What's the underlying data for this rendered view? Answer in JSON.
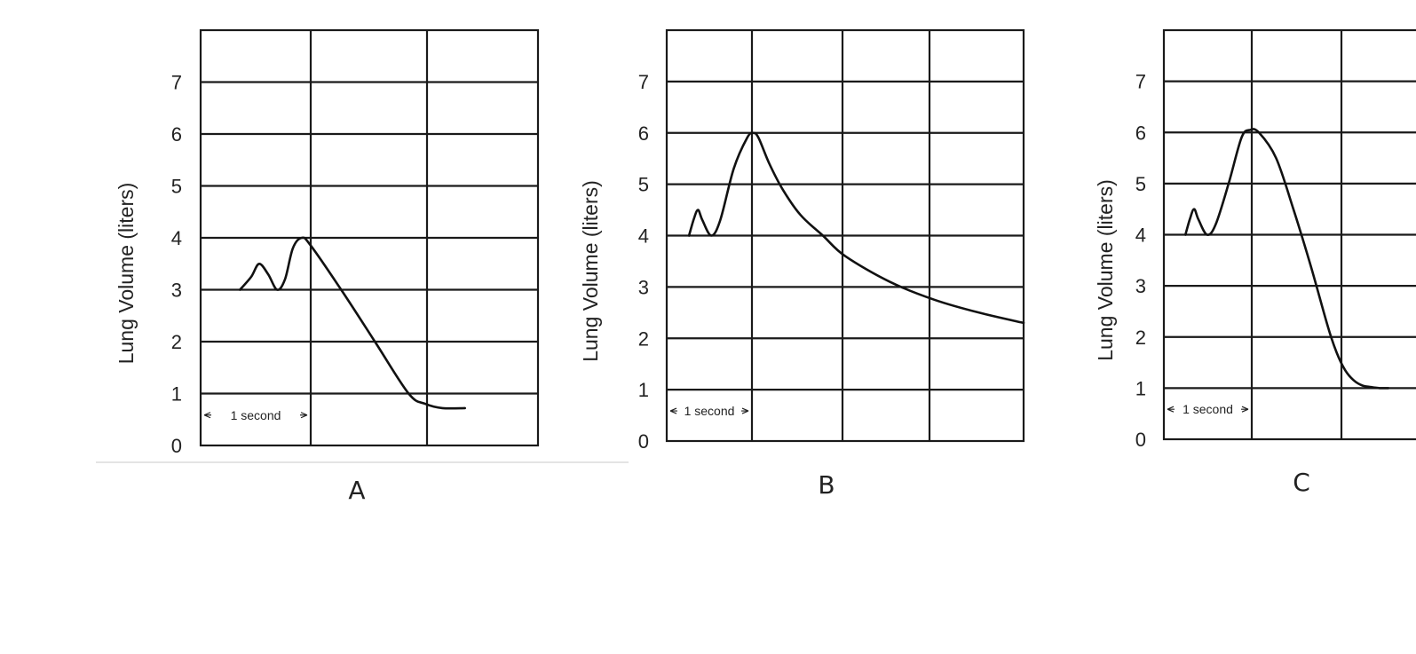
{
  "chart_data": [
    {
      "type": "line",
      "panel": "A",
      "ylabel": "Lung Volume (liters)",
      "ylim": [
        0,
        8
      ],
      "yticks": [
        "0",
        "1",
        "2",
        "3",
        "4",
        "5",
        "6",
        "7"
      ],
      "xlim": [
        0,
        3
      ],
      "x_unit_note": "1 second",
      "grid": true,
      "series": [
        {
          "x": [
            0.35,
            0.45,
            0.52,
            0.6,
            0.68,
            0.75,
            0.82,
            0.9,
            0.98,
            1.25,
            1.55,
            1.85,
            2.0,
            2.15,
            2.35
          ],
          "y": [
            3.0,
            3.25,
            3.5,
            3.3,
            3.0,
            3.2,
            3.8,
            4.0,
            3.85,
            3.0,
            2.0,
            1.0,
            0.8,
            0.72,
            0.72
          ]
        }
      ]
    },
    {
      "type": "line",
      "panel": "B",
      "ylabel": "Lung Volume (liters)",
      "ylim": [
        0,
        8
      ],
      "yticks": [
        "0",
        "1",
        "2",
        "3",
        "4",
        "5",
        "6",
        "7"
      ],
      "xlim": [
        0,
        4
      ],
      "x_unit_note": "1 second",
      "grid": true,
      "series": [
        {
          "x": [
            0.25,
            0.3,
            0.35,
            0.4,
            0.5,
            0.6,
            0.75,
            0.9,
            0.97,
            1.03,
            1.15,
            1.3,
            1.5,
            1.75,
            2.0,
            2.5,
            3.0,
            3.5,
            4.0
          ],
          "y": [
            4.0,
            4.3,
            4.5,
            4.3,
            4.0,
            4.3,
            5.3,
            5.9,
            6.0,
            5.9,
            5.4,
            4.9,
            4.4,
            4.0,
            3.6,
            3.1,
            2.75,
            2.5,
            2.3
          ]
        }
      ]
    },
    {
      "type": "line",
      "panel": "C",
      "ylabel": "Lung Volume (liters)",
      "ylim": [
        0,
        8
      ],
      "yticks": [
        "0",
        "1",
        "2",
        "3",
        "4",
        "5",
        "6",
        "7"
      ],
      "xlim": [
        0,
        4
      ],
      "x_unit_note": "1 second",
      "grid": true,
      "series": [
        {
          "x": [
            0.25,
            0.3,
            0.35,
            0.4,
            0.5,
            0.6,
            0.75,
            0.9,
            1.0,
            1.1,
            1.3,
            1.5,
            1.7,
            1.9,
            2.0,
            2.1,
            2.2,
            2.3,
            2.4,
            2.5,
            2.6
          ],
          "y": [
            4.0,
            4.3,
            4.5,
            4.3,
            4.0,
            4.2,
            5.0,
            5.9,
            6.05,
            6.0,
            5.5,
            4.5,
            3.4,
            2.2,
            1.7,
            1.35,
            1.15,
            1.05,
            1.02,
            1.0,
            1.0
          ]
        }
      ]
    }
  ]
}
